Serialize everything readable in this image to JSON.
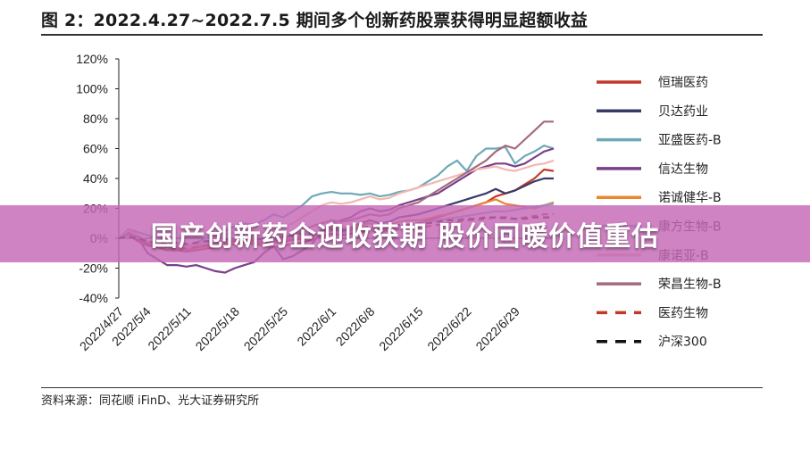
{
  "title": "图 2：2022.4.27~2022.7.5 期间多个创新药股票获得明显超额收益",
  "source": "资料来源：同花顺 iFinD、光大证券研究所",
  "banner": "国产创新药企迎收获期 股价回暖价值重估",
  "chart_data": {
    "type": "line",
    "ylim": [
      -40,
      120
    ],
    "yticks": [
      "120%",
      "100%",
      "80%",
      "60%",
      "40%",
      "20%",
      "0%",
      "-20%",
      "-40%"
    ],
    "x": [
      "2022/4/27",
      "2022/4/28",
      "2022/4/29",
      "2022/5/5",
      "2022/5/6",
      "2022/5/9",
      "2022/5/10",
      "2022/5/11",
      "2022/5/12",
      "2022/5/13",
      "2022/5/16",
      "2022/5/17",
      "2022/5/18",
      "2022/5/19",
      "2022/5/20",
      "2022/5/23",
      "2022/5/24",
      "2022/5/25",
      "2022/5/26",
      "2022/5/27",
      "2022/5/30",
      "2022/5/31",
      "2022/6/1",
      "2022/6/2",
      "2022/6/6",
      "2022/6/7",
      "2022/6/8",
      "2022/6/9",
      "2022/6/10",
      "2022/6/13",
      "2022/6/14",
      "2022/6/15",
      "2022/6/16",
      "2022/6/17",
      "2022/6/20",
      "2022/6/21",
      "2022/6/22",
      "2022/6/23",
      "2022/6/24",
      "2022/6/27",
      "2022/6/28",
      "2022/6/29",
      "2022/6/30",
      "2022/7/1",
      "2022/7/4",
      "2022/7/5"
    ],
    "xticks": [
      "2022/4/27",
      "2022/5/4",
      "2022/5/11",
      "2022/5/18",
      "2022/5/25",
      "2022/6/1",
      "2022/6/8",
      "2022/6/15",
      "2022/6/22",
      "2022/6/29"
    ],
    "series": [
      {
        "name": "恒瑞医药",
        "color": "#c0392b",
        "dash": false,
        "values": [
          0,
          2,
          -2,
          -5,
          -6,
          -8,
          -8,
          -9,
          -8,
          -7,
          -6,
          -5,
          -4,
          -3,
          -4,
          -5,
          -6,
          -5,
          -4,
          -3,
          -1,
          1,
          3,
          2,
          3,
          5,
          6,
          5,
          6,
          8,
          9,
          10,
          12,
          14,
          16,
          18,
          20,
          22,
          24,
          28,
          30,
          32,
          36,
          40,
          46,
          45
        ]
      },
      {
        "name": "贝达药业",
        "color": "#3a3a66",
        "dash": false,
        "values": [
          0,
          3,
          -1,
          -4,
          -5,
          -6,
          -7,
          -8,
          -7,
          -6,
          -5,
          -4,
          -2,
          -1,
          -2,
          -4,
          -3,
          -2,
          -1,
          0,
          2,
          4,
          6,
          5,
          7,
          10,
          12,
          10,
          11,
          14,
          15,
          16,
          18,
          20,
          22,
          24,
          26,
          28,
          30,
          33,
          30,
          32,
          35,
          38,
          40,
          40
        ]
      },
      {
        "name": "亚盛医药-B",
        "color": "#6fa8b8",
        "dash": false,
        "values": [
          0,
          6,
          4,
          2,
          0,
          -2,
          -4,
          -6,
          -3,
          0,
          2,
          5,
          8,
          10,
          9,
          12,
          16,
          14,
          18,
          22,
          28,
          30,
          31,
          30,
          30,
          29,
          30,
          28,
          29,
          31,
          32,
          34,
          38,
          42,
          48,
          52,
          45,
          55,
          60,
          60,
          61,
          50,
          55,
          58,
          62,
          60
        ]
      },
      {
        "name": "信达生物",
        "color": "#7a3f8a",
        "dash": false,
        "values": [
          0,
          4,
          0,
          -10,
          -14,
          -18,
          -18,
          -19,
          -18,
          -20,
          -22,
          -23,
          -20,
          -18,
          -16,
          -10,
          -5,
          -14,
          -12,
          -8,
          -4,
          5,
          10,
          12,
          14,
          18,
          20,
          18,
          19,
          22,
          24,
          26,
          28,
          30,
          34,
          38,
          42,
          46,
          48,
          50,
          50,
          48,
          50,
          54,
          58,
          60
        ]
      },
      {
        "name": "诺诚健华-B",
        "color": "#e8872f",
        "dash": false,
        "values": [
          0,
          3,
          1,
          -2,
          -4,
          -5,
          -6,
          -8,
          -7,
          -6,
          -5,
          -4,
          -3,
          -2,
          -3,
          -4,
          -3,
          -2,
          0,
          1,
          3,
          5,
          7,
          6,
          7,
          9,
          10,
          8,
          9,
          11,
          12,
          12,
          13,
          15,
          16,
          18,
          20,
          22,
          24,
          26,
          23,
          22,
          21,
          20,
          22,
          24
        ]
      },
      {
        "name": "康方生物-B",
        "color": "#8aa0c8",
        "dash": false,
        "values": [
          0,
          2,
          0,
          -3,
          -4,
          -5,
          -5,
          -6,
          -5,
          -4,
          -3,
          -2,
          -1,
          0,
          -1,
          -2,
          -1,
          0,
          1,
          2,
          3,
          4,
          5,
          4,
          5,
          6,
          7,
          6,
          7,
          8,
          9,
          10,
          11,
          12,
          13,
          14,
          15,
          16,
          17,
          18,
          18,
          19,
          20,
          21,
          22,
          23
        ]
      },
      {
        "name": "康诺亚-B",
        "color": "#f2b8b0",
        "dash": false,
        "values": [
          0,
          5,
          2,
          -2,
          -3,
          -5,
          -4,
          -6,
          -4,
          -2,
          0,
          2,
          4,
          6,
          5,
          4,
          6,
          8,
          10,
          14,
          18,
          22,
          24,
          23,
          24,
          26,
          28,
          26,
          27,
          30,
          32,
          34,
          36,
          38,
          40,
          42,
          44,
          46,
          47,
          48,
          46,
          45,
          47,
          49,
          50,
          52
        ]
      },
      {
        "name": "荣昌生物-B",
        "color": "#a46a7e",
        "dash": false,
        "values": [
          0,
          3,
          1,
          -3,
          -5,
          -6,
          -7,
          -8,
          -6,
          -5,
          -4,
          -3,
          -1,
          0,
          -1,
          -3,
          -2,
          0,
          2,
          5,
          8,
          10,
          12,
          11,
          12,
          14,
          16,
          15,
          16,
          20,
          22,
          24,
          28,
          32,
          36,
          40,
          44,
          48,
          52,
          58,
          62,
          60,
          66,
          72,
          78,
          78
        ]
      },
      {
        "name": "医药生物",
        "color": "#c0392b",
        "dash": true,
        "values": [
          0,
          1,
          -1,
          -4,
          -5,
          -6,
          -6,
          -7,
          -6,
          -5,
          -5,
          -4,
          -3,
          -2,
          -3,
          -4,
          -3,
          -2,
          -1,
          0,
          1,
          2,
          3,
          2,
          3,
          4,
          5,
          4,
          5,
          6,
          6,
          7,
          8,
          9,
          10,
          11,
          12,
          12,
          13,
          14,
          13,
          13,
          14,
          15,
          16,
          16
        ]
      },
      {
        "name": "沪深300",
        "color": "#111111",
        "dash": true,
        "values": [
          0,
          1,
          0,
          -2,
          -3,
          -4,
          -3,
          -4,
          -3,
          -2,
          -2,
          -1,
          0,
          1,
          0,
          -1,
          0,
          1,
          2,
          3,
          4,
          5,
          6,
          5,
          6,
          7,
          8,
          7,
          8,
          9,
          9,
          10,
          10,
          11,
          12,
          12,
          13,
          13,
          14,
          14,
          14,
          13,
          13,
          14,
          14,
          14
        ]
      }
    ]
  }
}
